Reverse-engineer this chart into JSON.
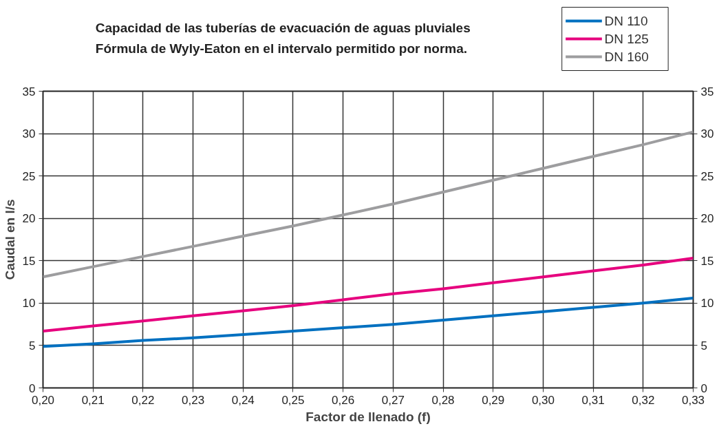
{
  "chart_data": {
    "type": "line",
    "title": "Capacidad de las tuberías de evacuación de aguas pluviales",
    "subtitle": "Fórmula de Wyly-Eaton en el intervalo permitido por norma.",
    "xlabel": "Factor de llenado (f)",
    "ylabel": "Caudal en l/s",
    "x": [
      0.2,
      0.21,
      0.22,
      0.23,
      0.24,
      0.25,
      0.26,
      0.27,
      0.28,
      0.29,
      0.3,
      0.31,
      0.32,
      0.33
    ],
    "series": [
      {
        "name": "DN 110",
        "color": "#0070c0",
        "values": [
          4.9,
          5.2,
          5.6,
          5.9,
          6.3,
          6.7,
          7.1,
          7.5,
          8.0,
          8.5,
          9.0,
          9.5,
          10.0,
          10.6
        ]
      },
      {
        "name": "DN 125",
        "color": "#e6007e",
        "values": [
          6.7,
          7.3,
          7.9,
          8.5,
          9.1,
          9.7,
          10.4,
          11.1,
          11.7,
          12.4,
          13.1,
          13.8,
          14.5,
          15.3
        ]
      },
      {
        "name": "DN 160",
        "color": "#9d9d9f",
        "values": [
          13.1,
          14.3,
          15.5,
          16.7,
          17.9,
          19.1,
          20.4,
          21.7,
          23.1,
          24.5,
          25.9,
          27.3,
          28.7,
          30.2
        ]
      }
    ],
    "xlim": [
      0.2,
      0.33
    ],
    "xticks": [
      {
        "value": 0.2,
        "label": "0,20"
      },
      {
        "value": 0.21,
        "label": "0,21"
      },
      {
        "value": 0.22,
        "label": "0,22"
      },
      {
        "value": 0.23,
        "label": "0,23"
      },
      {
        "value": 0.24,
        "label": "0,24"
      },
      {
        "value": 0.25,
        "label": "0,25"
      },
      {
        "value": 0.26,
        "label": "0,26"
      },
      {
        "value": 0.27,
        "label": "0,27"
      },
      {
        "value": 0.28,
        "label": "0,28"
      },
      {
        "value": 0.29,
        "label": "0,29"
      },
      {
        "value": 0.3,
        "label": "0,30"
      },
      {
        "value": 0.31,
        "label": "0,31"
      },
      {
        "value": 0.32,
        "label": "0,32"
      },
      {
        "value": 0.33,
        "label": "0,33"
      }
    ],
    "ylim": [
      0,
      35
    ],
    "yticks": [
      0,
      5,
      10,
      15,
      20,
      25,
      30,
      35
    ],
    "y2lim": [
      0,
      35
    ],
    "y2ticks": [
      0,
      5,
      10,
      15,
      20,
      25,
      30,
      35
    ],
    "grid": true,
    "legend": "top right"
  }
}
